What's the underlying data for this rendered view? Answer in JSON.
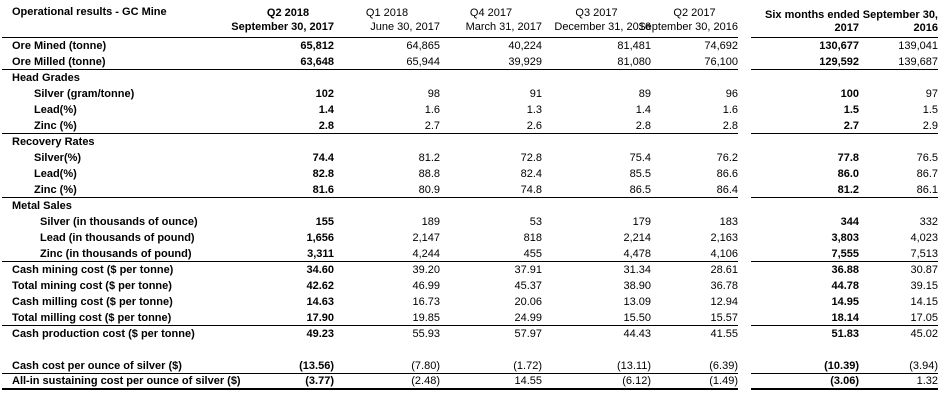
{
  "table": {
    "title": "Operational results - GC Mine",
    "header": {
      "quarters": [
        {
          "line1": "Q2 2018",
          "line2": "September 30, 2017"
        },
        {
          "line1": "Q1 2018",
          "line2": "June 30, 2017"
        },
        {
          "line1": "Q4 2017",
          "line2": "March 31, 2017"
        },
        {
          "line1": "Q3 2017",
          "line2": "December 31, 2016"
        },
        {
          "line1": "Q2 2017",
          "line2": "September 30, 2016"
        }
      ],
      "six_months": {
        "title": "Six months ended September 30,",
        "years": [
          "2017",
          "2016"
        ]
      }
    },
    "rows": [
      {
        "label": "Ore Mined (tonne)",
        "indent": 0,
        "values": [
          "65,812",
          "64,865",
          "40,224",
          "81,481",
          "74,692",
          "130,677",
          "139,041"
        ]
      },
      {
        "label": "Ore Milled (tonne)",
        "indent": 0,
        "values": [
          "63,648",
          "65,944",
          "39,929",
          "81,080",
          "76,100",
          "129,592",
          "139,687"
        ],
        "rule_below": true
      },
      {
        "label": "Head Grades",
        "indent": 0,
        "values": []
      },
      {
        "label": "Silver (gram/tonne)",
        "indent": 1,
        "values": [
          "102",
          "98",
          "91",
          "89",
          "96",
          "100",
          "97"
        ]
      },
      {
        "label": "Lead(%)",
        "indent": 1,
        "values": [
          "1.4",
          "1.6",
          "1.3",
          "1.4",
          "1.6",
          "1.5",
          "1.5"
        ]
      },
      {
        "label": "Zinc (%)",
        "indent": 1,
        "values": [
          "2.8",
          "2.7",
          "2.6",
          "2.8",
          "2.8",
          "2.7",
          "2.9"
        ],
        "rule_below": true
      },
      {
        "label": "Recovery Rates",
        "indent": 0,
        "values": []
      },
      {
        "label": "Silver(%)",
        "indent": 1,
        "values": [
          "74.4",
          "81.2",
          "72.8",
          "75.4",
          "76.2",
          "77.8",
          "76.5"
        ]
      },
      {
        "label": "Lead(%)",
        "indent": 1,
        "values": [
          "82.8",
          "88.8",
          "82.4",
          "85.5",
          "86.6",
          "86.0",
          "86.7"
        ]
      },
      {
        "label": "Zinc (%)",
        "indent": 1,
        "values": [
          "81.6",
          "80.9",
          "74.8",
          "86.5",
          "86.4",
          "81.2",
          "86.1"
        ],
        "rule_below": true
      },
      {
        "label": "Metal Sales",
        "indent": 0,
        "values": []
      },
      {
        "label": "Silver (in thousands of ounce)",
        "indent": 2,
        "values": [
          "155",
          "189",
          "53",
          "179",
          "183",
          "344",
          "332"
        ]
      },
      {
        "label": "Lead (in thousands of pound)",
        "indent": 2,
        "values": [
          "1,656",
          "2,147",
          "818",
          "2,214",
          "2,163",
          "3,803",
          "4,023"
        ]
      },
      {
        "label": "Zinc (in thousands of pound)",
        "indent": 2,
        "values": [
          "3,311",
          "4,244",
          "455",
          "4,478",
          "4,106",
          "7,555",
          "7,513"
        ],
        "rule_below": true
      },
      {
        "label": "Cash mining cost ($ per tonne)",
        "indent": 0,
        "values": [
          "34.60",
          "39.20",
          "37.91",
          "31.34",
          "28.61",
          "36.88",
          "30.87"
        ]
      },
      {
        "label": "Total mining cost ($ per tonne)",
        "indent": 0,
        "values": [
          "42.62",
          "46.99",
          "45.37",
          "38.90",
          "36.78",
          "44.78",
          "39.15"
        ]
      },
      {
        "label": "Cash milling cost ($ per tonne)",
        "indent": 0,
        "values": [
          "14.63",
          "16.73",
          "20.06",
          "13.09",
          "12.94",
          "14.95",
          "14.15"
        ]
      },
      {
        "label": "Total milling cost ($ per tonne)",
        "indent": 0,
        "values": [
          "17.90",
          "19.85",
          "24.99",
          "15.50",
          "15.57",
          "18.14",
          "17.05"
        ],
        "rule_below": true
      },
      {
        "label": "Cash production cost ($ per tonne)",
        "indent": 0,
        "values": [
          "49.23",
          "55.93",
          "57.97",
          "44.43",
          "41.55",
          "51.83",
          "45.02"
        ],
        "spacer_below": true
      },
      {
        "label": "Cash cost per ounce of silver ($)",
        "indent": 0,
        "values": [
          "(13.56)",
          "(7.80)",
          "(1.72)",
          "(13.11)",
          "(6.39)",
          "(10.39)",
          "(3.94)"
        ],
        "rule_below": true
      },
      {
        "label": "All-in sustaining cost per ounce of silver ($)",
        "indent": 0,
        "values": [
          "(3.77)",
          "(2.48)",
          "14.55",
          "(6.12)",
          "(1.49)",
          "(3.06)",
          "1.32"
        ],
        "rule_below": true,
        "rule_heavy": true
      }
    ],
    "styles": {
      "text_color": "#000000",
      "background_color": "#ffffff",
      "rule_color": "#000000"
    }
  }
}
